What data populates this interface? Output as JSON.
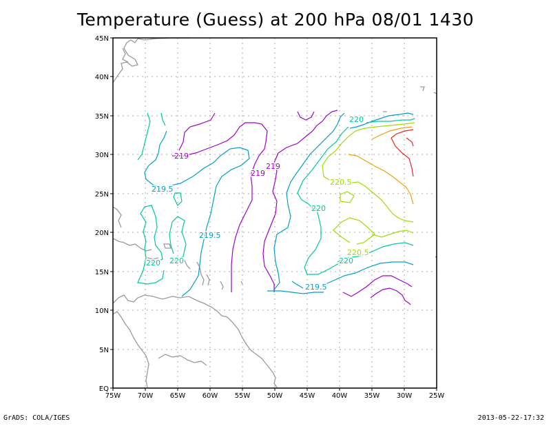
{
  "title": "Temperature (Guess) at 200 hPa 08/01 1430",
  "footer": {
    "left": "GrADS: COLA/IGES",
    "right": "2013-05-22-17:32"
  },
  "axes": {
    "lon_labels": [
      "75W",
      "70W",
      "65W",
      "60W",
      "55W",
      "50W",
      "45W",
      "40W",
      "35W",
      "30W",
      "25W"
    ],
    "lat_labels": [
      "EQ",
      "5N",
      "10N",
      "15N",
      "20N",
      "25N",
      "30N",
      "35N",
      "40N",
      "45N"
    ]
  },
  "contour_colors": {
    "219": "#a000c8",
    "219.5": "#00a0c8",
    "220": "#00c8a0",
    "220.5": "#a0dc00",
    "221": "#f0a000",
    "221.5": "#e62828"
  },
  "contour_labels": [
    {
      "text": "219",
      "level": "219"
    },
    {
      "text": "219",
      "level": "219"
    },
    {
      "text": "219",
      "level": "219"
    },
    {
      "text": "219.5",
      "level": "219.5"
    },
    {
      "text": "219.5",
      "level": "219.5"
    },
    {
      "text": "219.5",
      "level": "219.5"
    },
    {
      "text": "220",
      "level": "220"
    },
    {
      "text": "220",
      "level": "220"
    },
    {
      "text": "220",
      "level": "220"
    },
    {
      "text": "220",
      "level": "220"
    },
    {
      "text": "220",
      "level": "220"
    },
    {
      "text": "220.5",
      "level": "220.5"
    },
    {
      "text": "220.5",
      "level": "220.5"
    }
  ]
}
